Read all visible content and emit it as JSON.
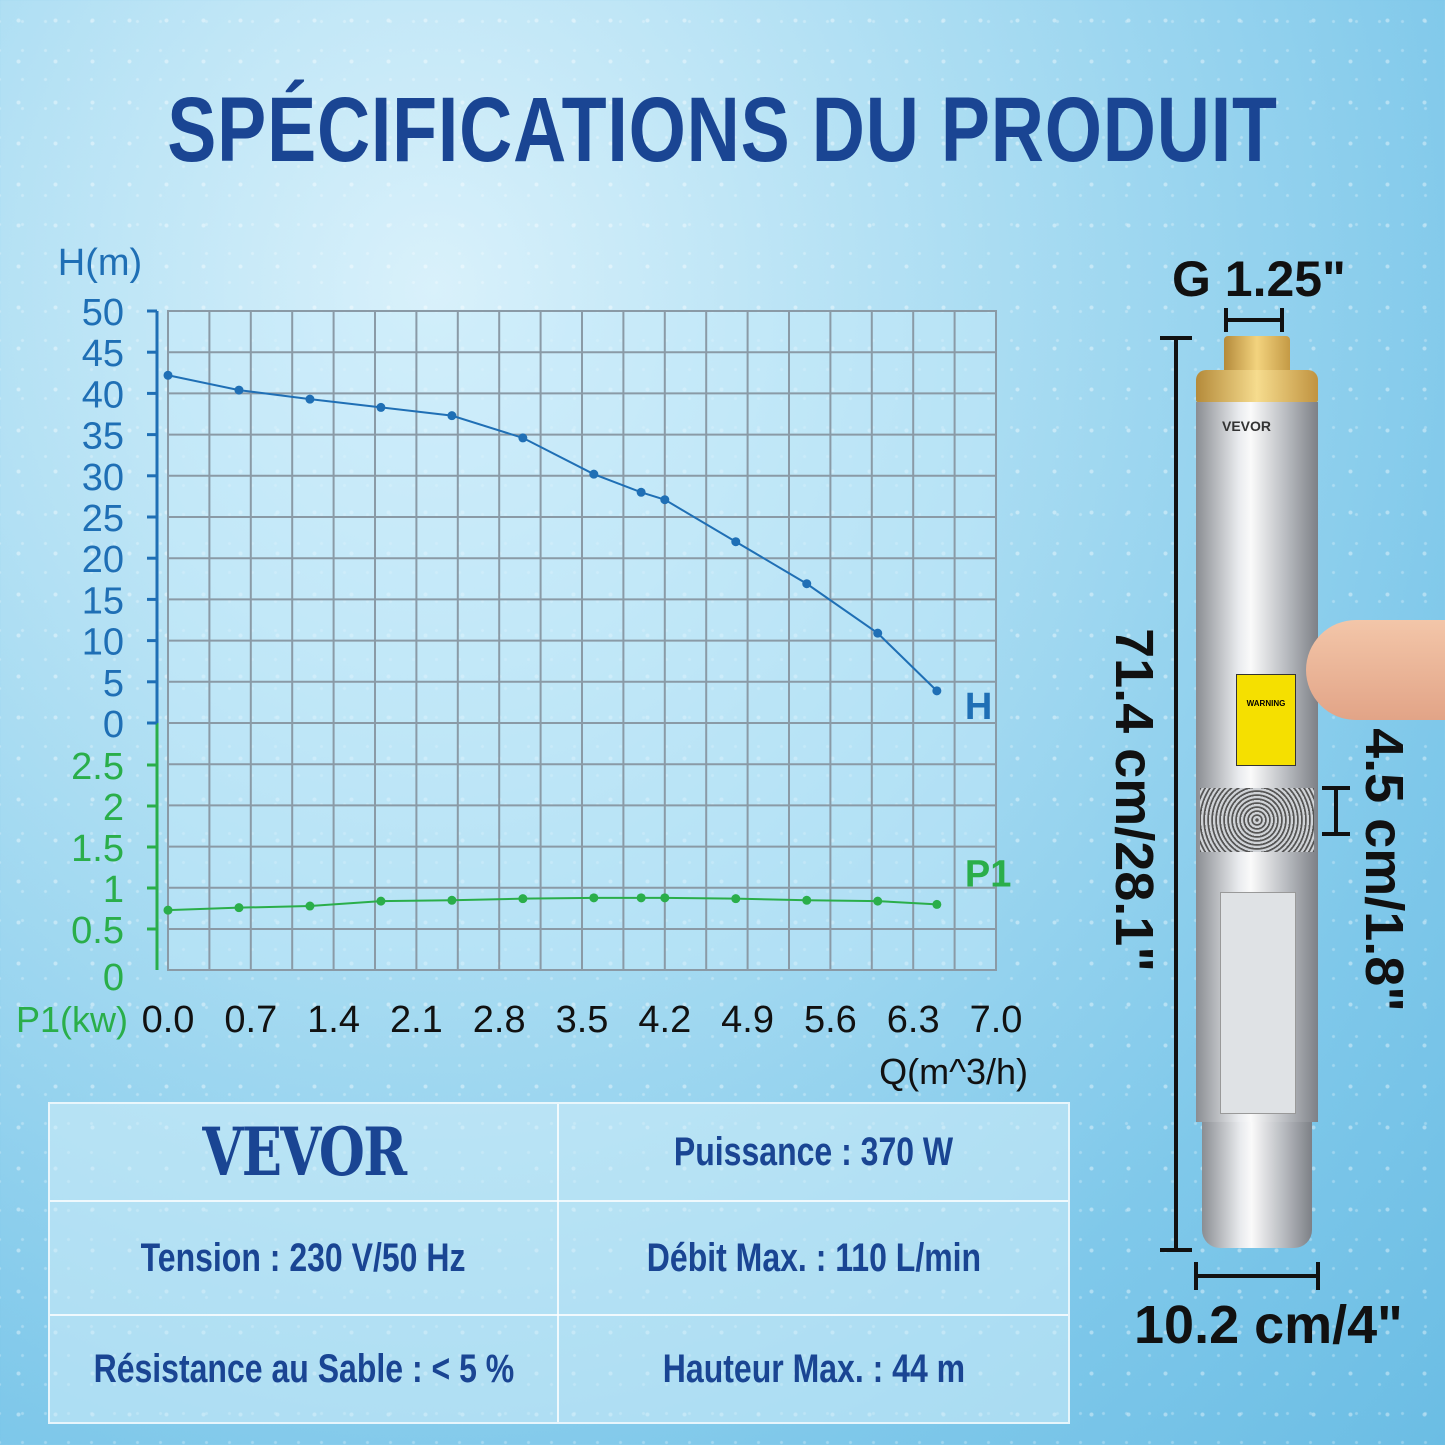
{
  "title": "SPÉCIFICATIONS DU PRODUIT",
  "chart_data": {
    "type": "line",
    "xlabel": "Q(m^3/h)",
    "x_ticks": [
      "0.0",
      "0.7",
      "1.4",
      "2.1",
      "2.8",
      "3.5",
      "4.2",
      "4.9",
      "5.6",
      "6.3",
      "7.0"
    ],
    "xlim": [
      0,
      7.0
    ],
    "grid": true,
    "x": [
      0,
      0.6,
      1.2,
      1.8,
      2.4,
      3.0,
      3.6,
      4.0,
      4.2,
      4.8,
      5.4,
      6.0,
      6.5
    ],
    "axes": [
      {
        "ylabel": "H(m)",
        "ylim": [
          0,
          50
        ],
        "ticks": [
          "0",
          "5",
          "10",
          "15",
          "20",
          "25",
          "30",
          "35",
          "40",
          "45",
          "50"
        ],
        "color": "#1f6fb5"
      },
      {
        "ylabel": "P1(kw)",
        "ylim": [
          0,
          2.5
        ],
        "ticks": [
          "0",
          "0.5",
          "1",
          "1.5",
          "2",
          "2.5"
        ],
        "color": "#2aae4a"
      }
    ],
    "series": [
      {
        "name": "H",
        "axis": 0,
        "color": "#1f6fb5",
        "values": [
          42.2,
          40.4,
          39.3,
          38.3,
          37.3,
          34.6,
          30.2,
          28.0,
          27.1,
          22.0,
          16.9,
          10.9,
          3.9
        ]
      },
      {
        "name": "P1",
        "axis": 1,
        "color": "#2aae4a",
        "values": [
          0.73,
          0.76,
          0.78,
          0.84,
          0.85,
          0.87,
          0.88,
          0.88,
          0.88,
          0.87,
          0.85,
          0.84,
          0.8
        ]
      }
    ]
  },
  "specs": {
    "brand": "VEVOR",
    "power": "Puissance : 370 W",
    "voltage": "Tension : 230 V/50 Hz",
    "flow": "Débit Max. : 110 L/min",
    "sand": "Résistance au Sable : < 5 %",
    "head": "Hauteur Max. : 44 m"
  },
  "product": {
    "thread": "G 1.25\"",
    "length": "71.4 cm/28.1\"",
    "inlet": "4.5 cm/1.8\"",
    "diameter": "10.2 cm/4\"",
    "label_brand": "VEVOR",
    "warning": "WARNING"
  }
}
